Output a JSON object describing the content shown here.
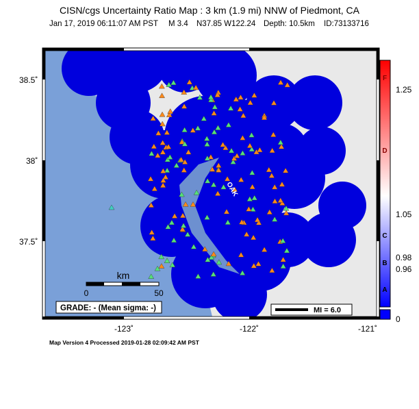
{
  "header": {
    "title": "CISN/cgs Uncertainty Ratio Map : 3 km (1.9 mi) NNW of Piedmont, CA",
    "subtitle": [
      "Jan 17, 2019 06:11:07 AM PST",
      "M 3.4",
      "N37.85 W122.24",
      "Depth: 10.5km",
      "ID:73133716"
    ]
  },
  "map": {
    "lat_labels": [
      "38.5˚",
      "38˚",
      "37.5˚"
    ],
    "lon_labels": [
      "-123˚",
      "-122˚",
      "-121˚"
    ],
    "scale_unit": "km",
    "scale_labels": [
      "0",
      "50"
    ],
    "grade": "GRADE: - (Mean sigma: -)",
    "mi_label": "MI = 6.0",
    "place_label": "OAK"
  },
  "colorbar": {
    "letters": [
      "F",
      "D",
      "C",
      "B",
      "A"
    ],
    "labels": [
      "1.25",
      "1.05",
      "0.98",
      "0.96",
      "0"
    ]
  },
  "footer": "Map Version 4 Processed 2019-01-28 02:09:42 AM PST"
}
